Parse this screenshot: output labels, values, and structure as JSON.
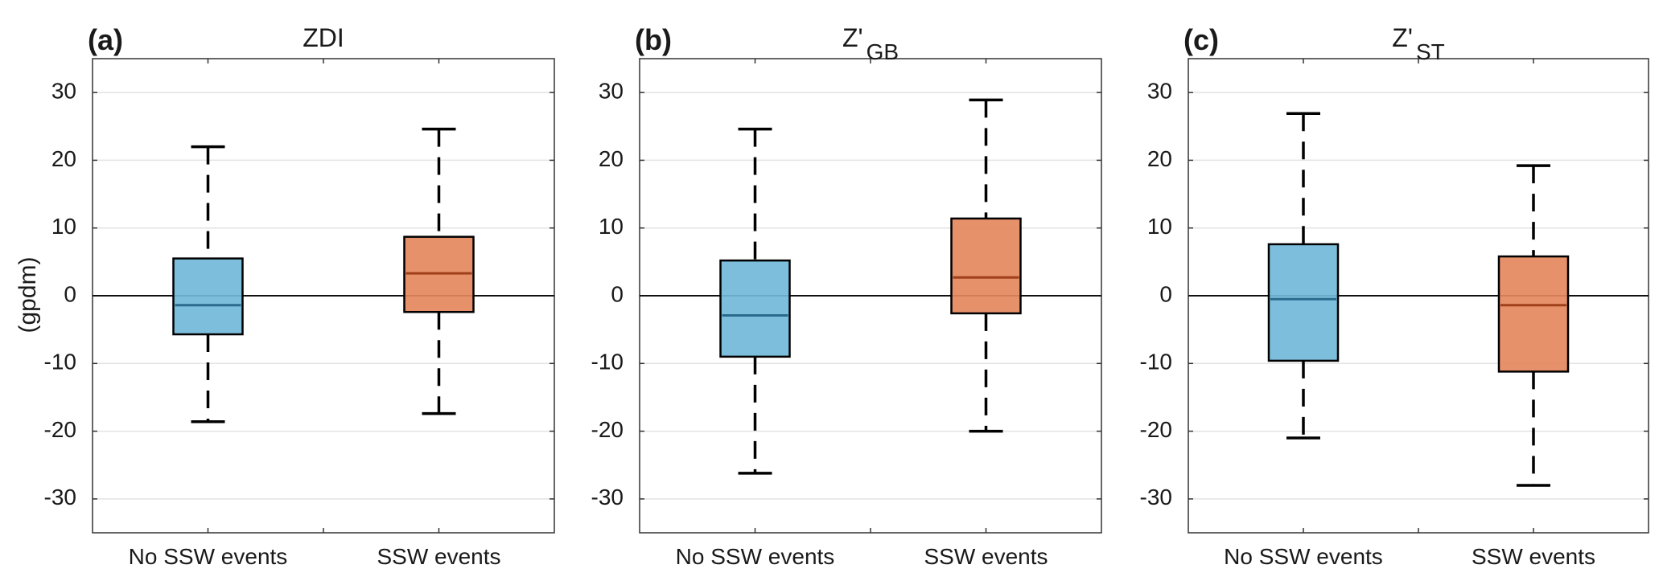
{
  "chart_data": {
    "type": "box",
    "ylabel": "(gpdm)",
    "ylim": [
      -35,
      35
    ],
    "yticks": [
      -30,
      -20,
      -10,
      0,
      10,
      20,
      30
    ],
    "grid": "horizontal",
    "zero_line": true,
    "categories": [
      "No SSW events",
      "SSW events"
    ],
    "colors": {
      "No SSW events": {
        "fill": "#72B8DA",
        "median": "#2B6A8C"
      },
      "SSW events": {
        "fill": "#E5885E",
        "median": "#A0401A"
      },
      "whisker": "#000000",
      "grid": "#e3e3e3",
      "axis": "#333333"
    },
    "panels": [
      {
        "letter": "(a)",
        "title": "ZDI",
        "title_main": "ZDI",
        "title_sub": "",
        "boxes": [
          {
            "category": "No SSW events",
            "whisker_low": -18.6,
            "q1": -5.7,
            "median": -1.4,
            "q3": 5.5,
            "whisker_high": 22.0
          },
          {
            "category": "SSW events",
            "whisker_low": -17.4,
            "q1": -2.4,
            "median": 3.3,
            "q3": 8.7,
            "whisker_high": 24.6
          }
        ]
      },
      {
        "letter": "(b)",
        "title": "Z'GB",
        "title_main": "Z'",
        "title_sub": "GB",
        "boxes": [
          {
            "category": "No SSW events",
            "whisker_low": -26.2,
            "q1": -9.0,
            "median": -2.9,
            "q3": 5.2,
            "whisker_high": 24.6
          },
          {
            "category": "SSW events",
            "whisker_low": -20.0,
            "q1": -2.6,
            "median": 2.7,
            "q3": 11.4,
            "whisker_high": 28.9
          }
        ]
      },
      {
        "letter": "(c)",
        "title": "Z'ST",
        "title_main": "Z'",
        "title_sub": "ST",
        "boxes": [
          {
            "category": "No SSW events",
            "whisker_low": -21.0,
            "q1": -9.6,
            "median": -0.5,
            "q3": 7.6,
            "whisker_high": 26.9
          },
          {
            "category": "SSW events",
            "whisker_low": -28.0,
            "q1": -11.2,
            "median": -1.4,
            "q3": 5.8,
            "whisker_high": 19.2
          }
        ]
      }
    ]
  }
}
